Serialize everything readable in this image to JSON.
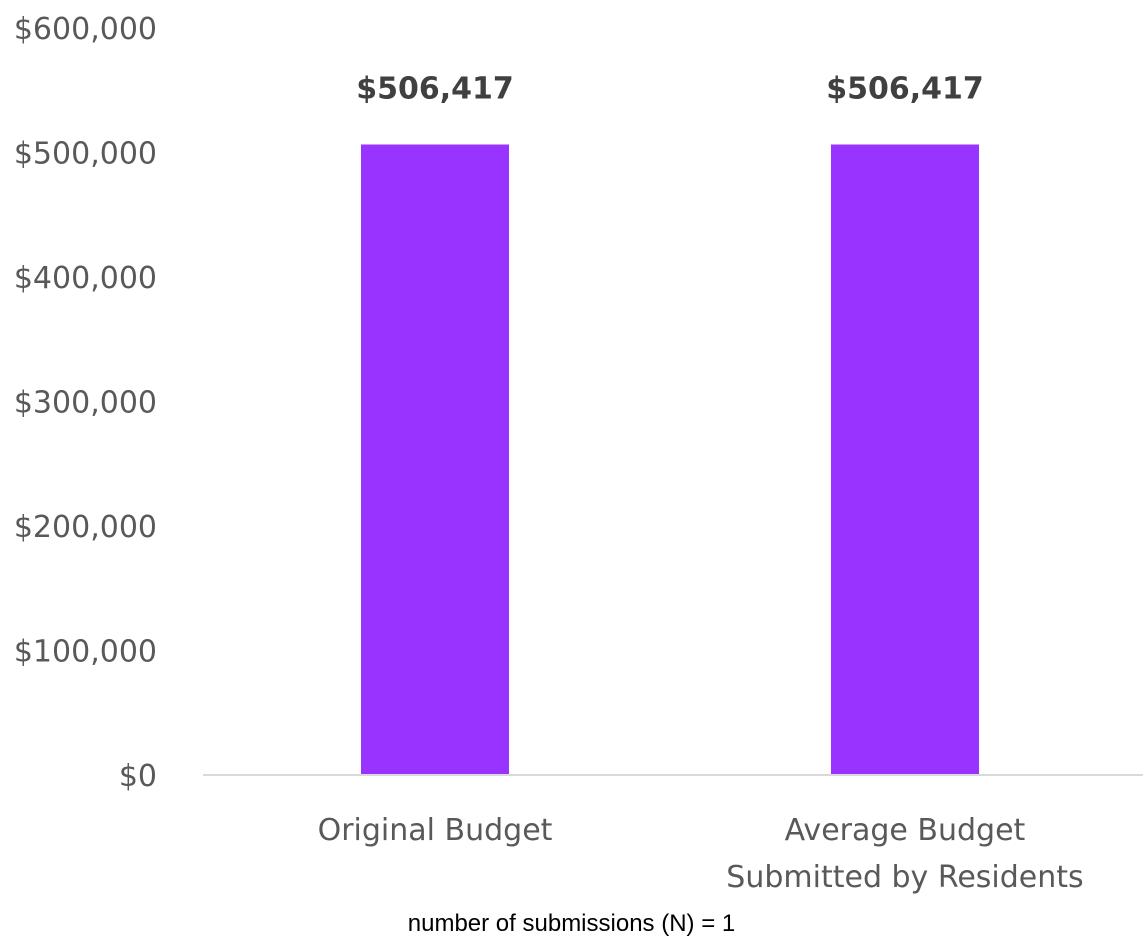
{
  "chart_data": {
    "type": "bar",
    "categories": [
      [
        "Original Budget"
      ],
      [
        "Average Budget",
        "Submitted by Residents"
      ]
    ],
    "values": [
      506417,
      506417
    ],
    "data_labels": [
      "$506,417",
      "$506,417"
    ],
    "ylim": [
      0,
      600000
    ],
    "yticks": [
      0,
      100000,
      200000,
      300000,
      400000,
      500000,
      600000
    ],
    "ytick_labels": [
      "$0",
      "$100,000",
      "$200,000",
      "$300,000",
      "$400,000",
      "$500,000",
      "$600,000"
    ],
    "bar_color": "#9933FF",
    "axis_color": "#D9D9D9",
    "grid": false,
    "legend": "none"
  },
  "footnote": "number of submissions (N) = 1"
}
